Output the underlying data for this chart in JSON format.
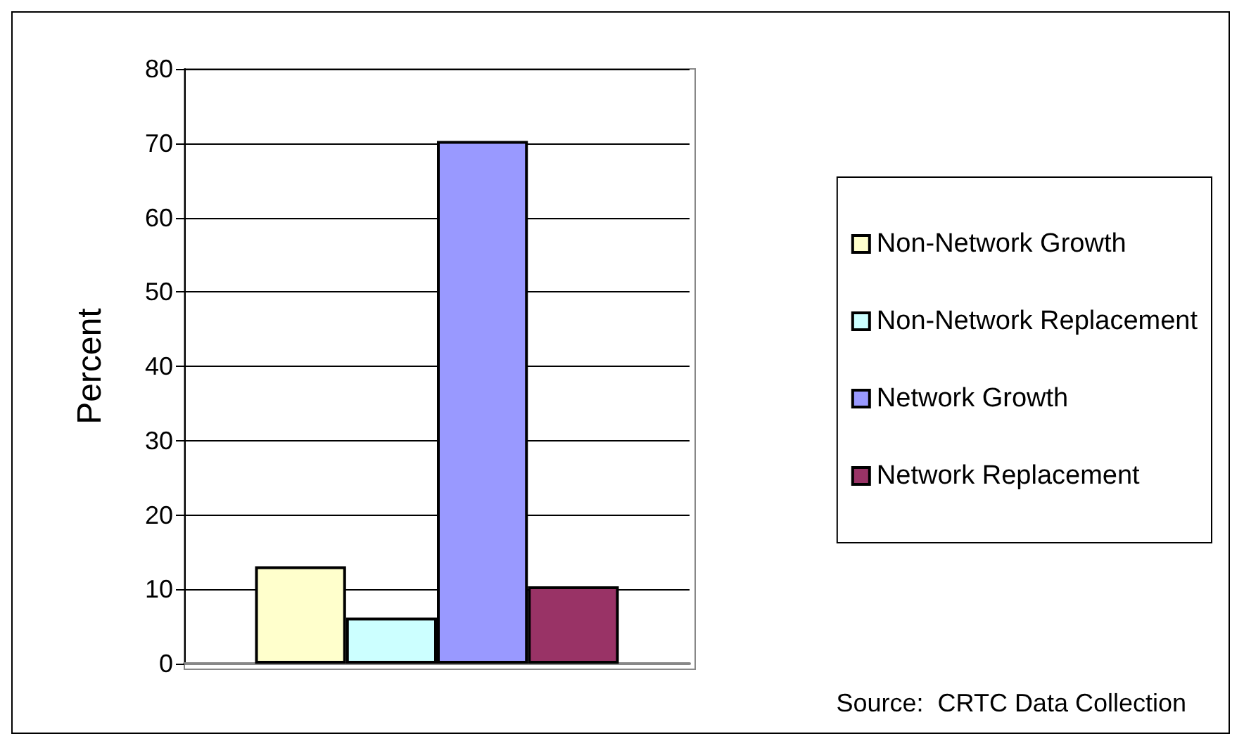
{
  "chart_data": {
    "type": "bar",
    "ylabel": "Percent",
    "categories": [
      null
    ],
    "series": [
      {
        "name": "Non-Network Growth",
        "color": "#ffffcc",
        "values": [
          13.1
        ]
      },
      {
        "name": "Non-Network Replacement",
        "color": "#ccffff",
        "values": [
          6.2
        ]
      },
      {
        "name": "Network Growth",
        "color": "#9999ff",
        "values": [
          70.3
        ]
      },
      {
        "name": "Network Replacement",
        "color": "#993366",
        "values": [
          10.4
        ]
      }
    ],
    "ylim": [
      0,
      80
    ],
    "yticks": [
      0,
      10,
      20,
      30,
      40,
      50,
      60,
      70,
      80
    ],
    "grid": "y",
    "legend": "right",
    "annotations": [
      "Source:  CRTC Data Collection"
    ]
  }
}
